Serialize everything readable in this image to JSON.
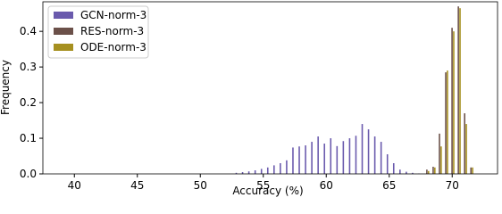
{
  "chart_data": {
    "type": "bar",
    "x_label": "Accuracy (%)",
    "y_label": "Frequency",
    "x": [
      53,
      53.5,
      54,
      54.5,
      55,
      55.5,
      56,
      56.5,
      57,
      57.5,
      58,
      58.5,
      59,
      59.5,
      60,
      60.5,
      61,
      61.5,
      62,
      62.5,
      63,
      63.5,
      64,
      64.5,
      65,
      65.5,
      66,
      66.5,
      67,
      67.5,
      68,
      68.5,
      69,
      69.5,
      70,
      70.5,
      71,
      71.5,
      72
    ],
    "series": [
      {
        "name": "GCN-norm-3",
        "color": "#6a5aad",
        "values": [
          0.003,
          0.005,
          0.007,
          0.01,
          0.014,
          0.018,
          0.024,
          0.03,
          0.038,
          0.074,
          0.077,
          0.08,
          0.09,
          0.105,
          0.085,
          0.1,
          0.078,
          0.092,
          0.1,
          0.107,
          0.14,
          0.125,
          0.105,
          0.09,
          0.055,
          0.03,
          0.012,
          0.006,
          0.003,
          0.001,
          0,
          0,
          0,
          0,
          0,
          0,
          0,
          0,
          0
        ]
      },
      {
        "name": "RES-norm-3",
        "color": "#6b5049",
        "values": [
          0,
          0,
          0,
          0,
          0,
          0,
          0,
          0,
          0,
          0,
          0,
          0,
          0,
          0,
          0,
          0,
          0,
          0,
          0,
          0,
          0,
          0,
          0,
          0,
          0,
          0,
          0,
          0,
          0,
          0,
          0.012,
          0.02,
          0.113,
          0.285,
          0.41,
          0.47,
          0.17,
          0.018,
          0
        ]
      },
      {
        "name": "ODE-norm-3",
        "color": "#a69020",
        "values": [
          0,
          0,
          0,
          0,
          0,
          0,
          0,
          0,
          0,
          0,
          0,
          0,
          0,
          0,
          0,
          0,
          0,
          0,
          0,
          0,
          0,
          0,
          0,
          0,
          0,
          0,
          0,
          0,
          0,
          0,
          0.008,
          0.018,
          0.077,
          0.29,
          0.4,
          0.465,
          0.14,
          0.018,
          0
        ]
      }
    ],
    "xlim": [
      37.5,
      73.6
    ],
    "xticks": [
      40,
      45,
      50,
      55,
      60,
      65,
      70
    ],
    "ylim": [
      0,
      0.483
    ],
    "yticks": [
      {
        "value": 0,
        "label": "0.0"
      },
      0.1,
      0.2,
      0.3,
      0.4
    ],
    "legend": "upper-left"
  }
}
